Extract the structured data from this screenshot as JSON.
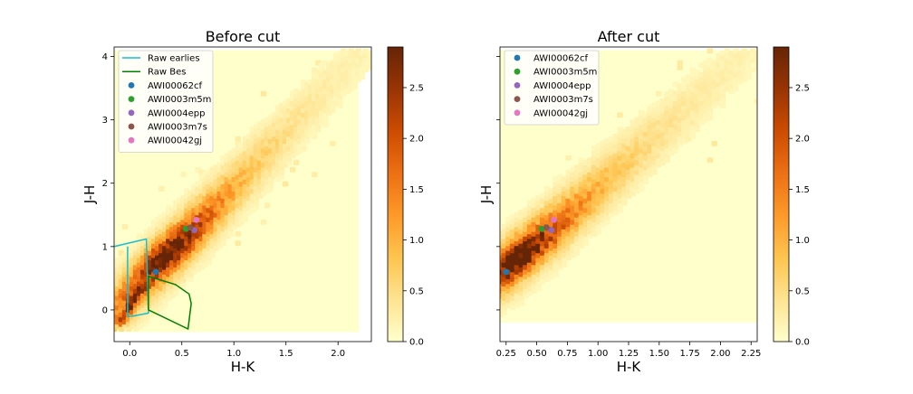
{
  "figure": {
    "colorbar_ticks": [
      "0.0",
      "0.5",
      "1.0",
      "1.5",
      "2.0",
      "2.5"
    ],
    "colormap": [
      "#ffffcc",
      "#fee391",
      "#fec44f",
      "#fe9929",
      "#ec7014",
      "#cc4c02",
      "#993404",
      "#662506"
    ],
    "marker_colors": [
      "#1f77b4",
      "#2ca02c",
      "#9467bd",
      "#8c564b",
      "#e377c2"
    ],
    "outline_colors": {
      "Raw earlies": "#17becf",
      "Raw Bes": "#008000"
    }
  },
  "chart_data": [
    {
      "type": "scatter",
      "title": "Before cut",
      "xlabel": "H-K",
      "ylabel": "J-H",
      "xlim": [
        -0.15,
        2.32
      ],
      "ylim": [
        -0.5,
        4.15
      ],
      "xticks": [
        "0.0",
        "0.5",
        "1.0",
        "1.5",
        "2.0"
      ],
      "yticks": [
        "0",
        "1",
        "2",
        "3",
        "4"
      ],
      "xtick_values": [
        0,
        0.5,
        1.0,
        1.5,
        2.0
      ],
      "ytick_values": [
        0,
        1,
        2,
        3,
        4
      ],
      "density": {
        "type": "heatmap",
        "colorbar_range": [
          0,
          2.9
        ],
        "x_range": [
          -0.15,
          2.2
        ],
        "y_range": [
          -0.35,
          4.1
        ]
      },
      "legend_position": "upper left",
      "lines": [
        {
          "name": "Raw earlies",
          "color": "#17becf",
          "x": [
            -0.15,
            0.16,
            0.18,
            0.02,
            -0.02,
            -0.02
          ],
          "y": [
            1.0,
            1.12,
            -0.05,
            -0.1,
            -0.1,
            1.0
          ]
        },
        {
          "name": "Raw Bes",
          "color": "#008000",
          "x": [
            0.18,
            0.18,
            0.44,
            0.57,
            0.59,
            0.56,
            0.18
          ],
          "y": [
            0.0,
            0.53,
            0.4,
            0.25,
            0.1,
            -0.3,
            0.0
          ]
        }
      ],
      "series": [
        {
          "name": "AWI00062cf",
          "color": "#1f77b4",
          "x": [
            0.25
          ],
          "y": [
            0.6
          ]
        },
        {
          "name": "AWI0003m5m",
          "color": "#2ca02c",
          "x": [
            0.54
          ],
          "y": [
            1.28
          ]
        },
        {
          "name": "AWI0004epp",
          "color": "#9467bd",
          "x": [
            0.62
          ],
          "y": [
            1.26
          ]
        },
        {
          "name": "AWI0003m7s",
          "color": "#8c564b",
          "x": [
            0.58
          ],
          "y": [
            1.3
          ]
        },
        {
          "name": "AWI00042gj",
          "color": "#e377c2",
          "x": [
            0.64
          ],
          "y": [
            1.42
          ]
        }
      ]
    },
    {
      "type": "scatter",
      "title": "After cut",
      "xlabel": "H-K",
      "ylabel": "J-H",
      "xlim": [
        0.2,
        2.3
      ],
      "ylim": [
        -0.5,
        4.15
      ],
      "xticks": [
        "0.25",
        "0.50",
        "0.75",
        "1.00",
        "1.25",
        "1.50",
        "1.75",
        "2.00",
        "2.25"
      ],
      "yticks": [],
      "xtick_values": [
        0.25,
        0.5,
        0.75,
        1.0,
        1.25,
        1.5,
        1.75,
        2.0,
        2.25
      ],
      "ytick_values": [
        0,
        1,
        2,
        3,
        4
      ],
      "density": {
        "type": "heatmap",
        "colorbar_range": [
          0,
          2.9
        ],
        "x_range": [
          0.2,
          2.3
        ],
        "y_range": [
          -0.2,
          4.1
        ]
      },
      "legend_position": "upper left",
      "lines": [],
      "series": [
        {
          "name": "AWI00062cf",
          "color": "#1f77b4",
          "x": [
            0.25
          ],
          "y": [
            0.6
          ]
        },
        {
          "name": "AWI0003m5m",
          "color": "#2ca02c",
          "x": [
            0.54
          ],
          "y": [
            1.28
          ]
        },
        {
          "name": "AWI0004epp",
          "color": "#9467bd",
          "x": [
            0.62
          ],
          "y": [
            1.26
          ]
        },
        {
          "name": "AWI0003m7s",
          "color": "#8c564b",
          "x": [
            0.58
          ],
          "y": [
            1.3
          ]
        },
        {
          "name": "AWI00042gj",
          "color": "#e377c2",
          "x": [
            0.64
          ],
          "y": [
            1.42
          ]
        }
      ]
    }
  ]
}
